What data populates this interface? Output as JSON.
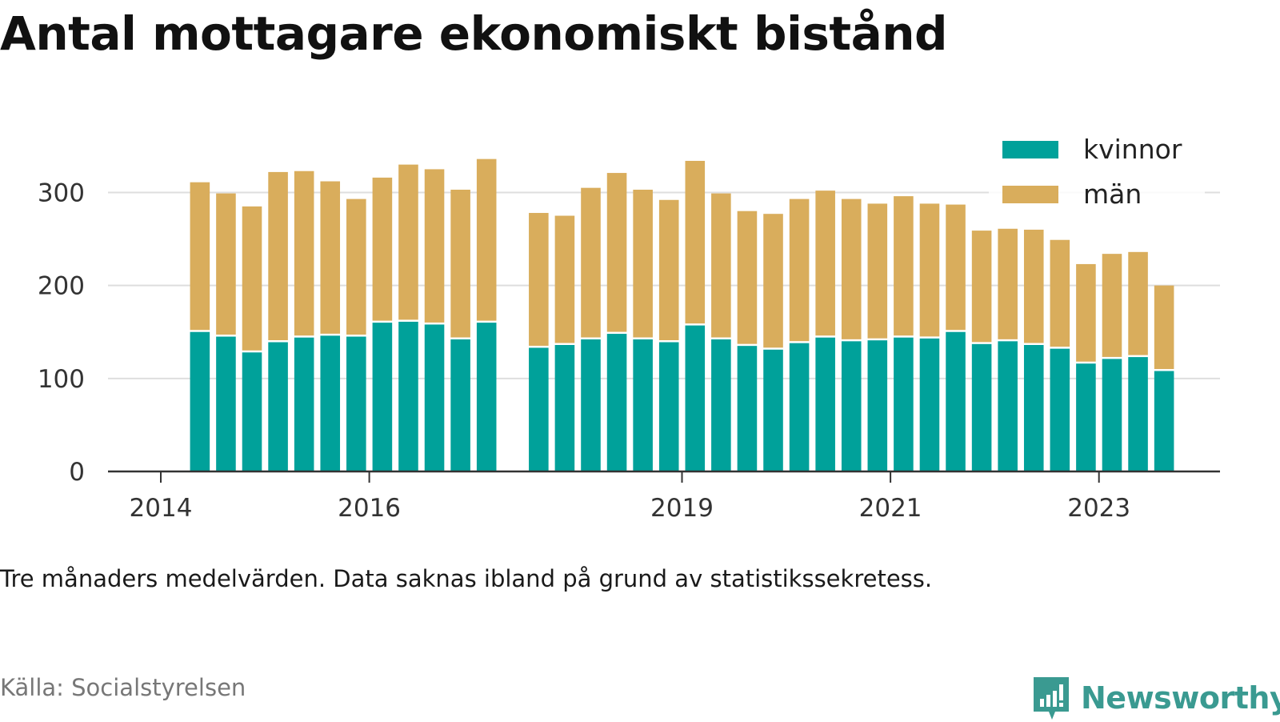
{
  "title": "Antal mottagare ekonomiskt bistånd",
  "note": "Tre månaders medelvärden. Data saknas ibland på grund av statistikssekretess.",
  "source": "Källa: Socialstyrelsen",
  "brand": {
    "name": "Newsworthy",
    "icon": "newsworthy-logo-icon",
    "color": "#3a9a91"
  },
  "chart_data": {
    "type": "bar",
    "stacked": true,
    "xlabel": "",
    "ylabel": "",
    "ylim": [
      0,
      340
    ],
    "yticks": [
      0,
      100,
      200,
      300
    ],
    "xticks": [
      {
        "label": "2014",
        "x": 2014.0
      },
      {
        "label": "2016",
        "x": 2016.0
      },
      {
        "label": "2019",
        "x": 2019.0
      },
      {
        "label": "2021",
        "x": 2021.0
      },
      {
        "label": "2023",
        "x": 2023.0
      }
    ],
    "x_period_years": 0.25,
    "grid": true,
    "legend": "top-right",
    "x": [
      2014.375,
      2014.625,
      2014.875,
      2015.125,
      2015.375,
      2015.625,
      2015.875,
      2016.125,
      2016.375,
      2016.625,
      2016.875,
      2017.125,
      2017.625,
      2017.875,
      2018.125,
      2018.375,
      2018.625,
      2018.875,
      2019.125,
      2019.375,
      2019.625,
      2019.875,
      2020.125,
      2020.375,
      2020.625,
      2020.875,
      2021.125,
      2021.375,
      2021.625,
      2021.875,
      2022.125,
      2022.375,
      2022.625,
      2022.875,
      2023.125,
      2023.375,
      2023.625
    ],
    "series": [
      {
        "name": "kvinnor",
        "color": "#00a19a",
        "values": [
          150,
          145,
          128,
          139,
          144,
          146,
          145,
          160,
          161,
          158,
          142,
          160,
          133,
          136,
          142,
          148,
          142,
          139,
          157,
          142,
          135,
          131,
          138,
          144,
          140,
          141,
          144,
          143,
          150,
          137,
          140,
          136,
          132,
          116,
          121,
          123,
          108
        ]
      },
      {
        "name": "män",
        "color": "#d9ad5c",
        "values": [
          161,
          154,
          157,
          183,
          179,
          166,
          148,
          156,
          169,
          167,
          161,
          176,
          145,
          139,
          163,
          173,
          161,
          153,
          177,
          157,
          145,
          146,
          155,
          158,
          153,
          147,
          152,
          145,
          137,
          122,
          121,
          124,
          117,
          107,
          113,
          113,
          92
        ]
      }
    ]
  }
}
